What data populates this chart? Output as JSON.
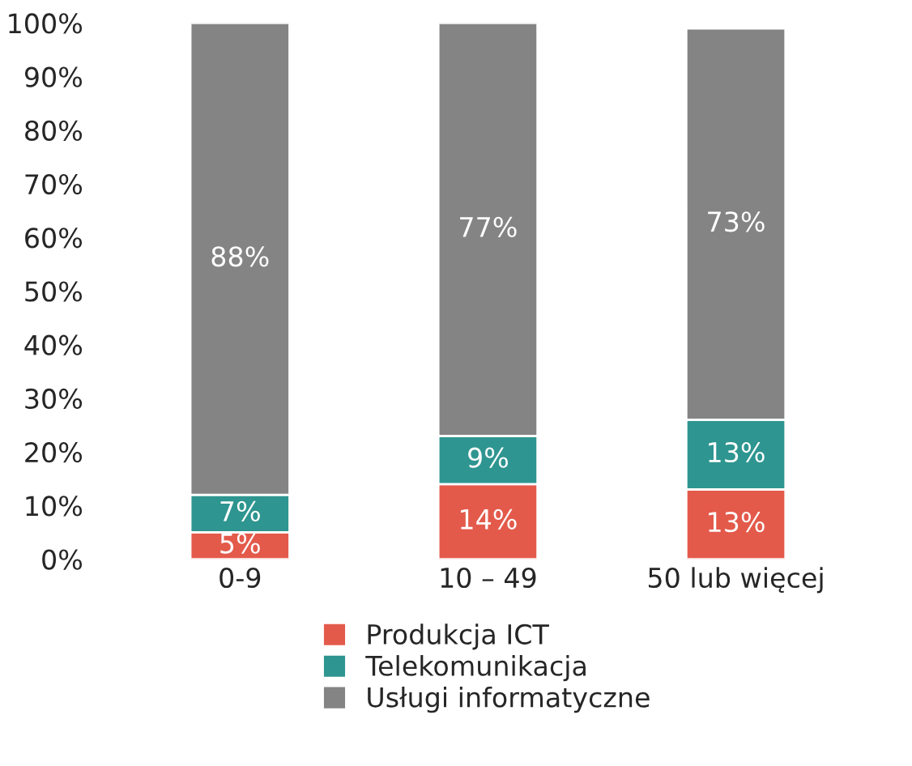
{
  "chart_data": {
    "type": "bar",
    "stacked": true,
    "data_labels": true,
    "legend": "bottom",
    "grid": false,
    "categories": [
      "0-9",
      "10 – 49",
      "50 lub więcej"
    ],
    "ylim": [
      0,
      100
    ],
    "yticks": [
      {
        "value": 0,
        "label": "0%"
      },
      {
        "value": 10,
        "label": "10%"
      },
      {
        "value": 20,
        "label": "20%"
      },
      {
        "value": 30,
        "label": "30%"
      },
      {
        "value": 40,
        "label": "40%"
      },
      {
        "value": 50,
        "label": "50%"
      },
      {
        "value": 60,
        "label": "60%"
      },
      {
        "value": 70,
        "label": "70%"
      },
      {
        "value": 80,
        "label": "80%"
      },
      {
        "value": 90,
        "label": "90%"
      },
      {
        "value": 100,
        "label": "100%"
      }
    ],
    "series": [
      {
        "name": "Produkcja ICT",
        "color": "#e35a4b",
        "values": [
          5,
          14,
          13
        ],
        "value_labels": [
          "5%",
          "14%",
          "13%"
        ]
      },
      {
        "name": "Telekomunikacja",
        "color": "#2e9590",
        "values": [
          7,
          9,
          13
        ],
        "value_labels": [
          "7%",
          "9%",
          "13%"
        ]
      },
      {
        "name": "Usługi informatyczne",
        "color": "#848484",
        "values": [
          88,
          77,
          73
        ],
        "value_labels": [
          "88%",
          "77%",
          "73%"
        ]
      }
    ]
  }
}
